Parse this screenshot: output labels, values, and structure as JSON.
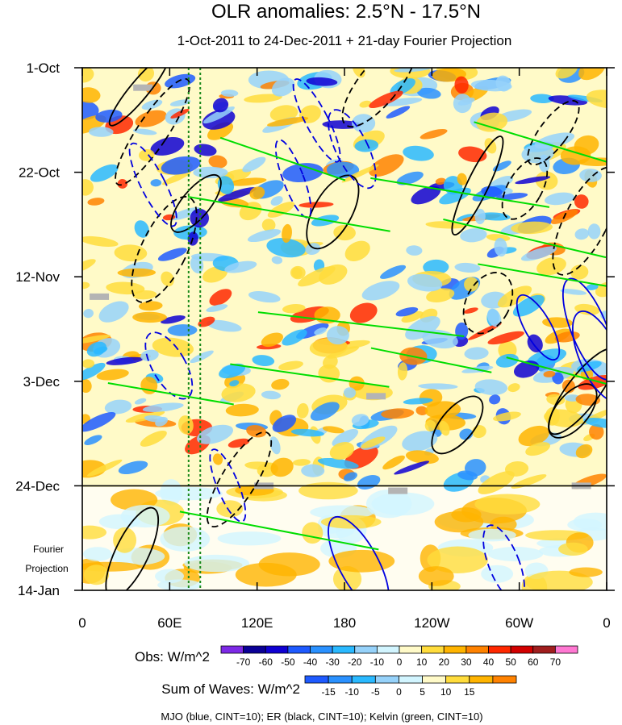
{
  "chart_data": {
    "type": "heatmap",
    "title": "OLR anomalies: 2.5°N - 17.5°N",
    "subtitle": "1-Oct-2011 to 24-Dec-2011 + 21-day Fourier Projection",
    "x_ticks": [
      "0",
      "60E",
      "120E",
      "180",
      "120W",
      "60W",
      "0"
    ],
    "x_tick_values": [
      0,
      60,
      120,
      180,
      240,
      300,
      360
    ],
    "x_range": [
      0,
      360
    ],
    "y_ticks": [
      "1-Oct",
      "22-Oct",
      "12-Nov",
      "3-Dec",
      "24-Dec",
      "14-Jan"
    ],
    "y_tick_days": [
      0,
      21,
      42,
      63,
      84,
      105
    ],
    "y_range_days": [
      0,
      105
    ],
    "observation_end_day": 84,
    "fourier_label_line1": "Fourier",
    "fourier_label_line2": "Projection",
    "reference_longitudes_dotted_green": [
      73,
      81
    ],
    "obs_colorbar": {
      "title": "Obs: W/m^2",
      "labels": [
        "-70",
        "-60",
        "-50",
        "-40",
        "-30",
        "-20",
        "-10",
        "0",
        "10",
        "20",
        "30",
        "40",
        "50",
        "60",
        "70"
      ],
      "colors": [
        "#7d29e6",
        "#0a0096",
        "#0f00d2",
        "#1e5aff",
        "#2a91ff",
        "#2ab9ff",
        "#96d2fa",
        "#d2f5ff",
        "#fffac8",
        "#ffdc3c",
        "#ffb400",
        "#ff8200",
        "#ff2800",
        "#d20000",
        "#a01e1e",
        "#ff78d2"
      ]
    },
    "waves_colorbar": {
      "title": "Sum of Waves: W/m^2",
      "labels": [
        "-15",
        "-10",
        "-5",
        "0",
        "5",
        "10",
        "15"
      ],
      "colors": [
        "#1e5aff",
        "#2a91ff",
        "#2ab9ff",
        "#96d2fa",
        "#d2f5ff",
        "#fffac8",
        "#ffdc3c",
        "#ffb400",
        "#ff8200"
      ]
    },
    "footnote": "MJO (blue, CINT=10); ER (black, CINT=10); Kelvin (green, CINT=10)",
    "series": [
      {
        "name": "MJO",
        "color": "#0000e0"
      },
      {
        "name": "ER",
        "color": "#000000"
      },
      {
        "name": "Kelvin",
        "color": "#00dd00"
      }
    ]
  }
}
